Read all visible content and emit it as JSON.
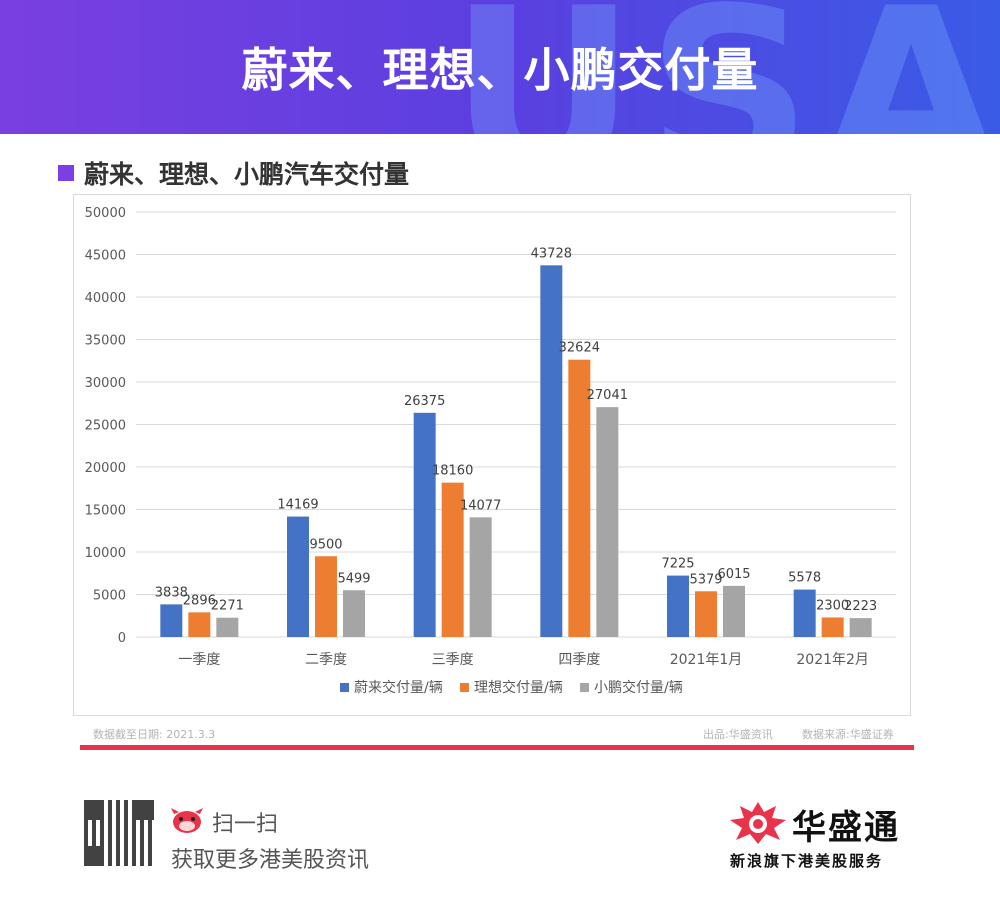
{
  "banner": {
    "title": "蔚来、理想、小鹏交付量",
    "deco_text": "USA"
  },
  "section": {
    "title": "蔚来、理想、小鹏汽车交付量"
  },
  "chart_data": {
    "type": "bar",
    "categories": [
      "一季度",
      "二季度",
      "三季度",
      "四季度",
      "2021年1月",
      "2021年2月"
    ],
    "series": [
      {
        "name": "蔚来交付量/辆",
        "color": "#4472c4",
        "values": [
          3838,
          14169,
          26375,
          43728,
          7225,
          5578
        ]
      },
      {
        "name": "理想交付量/辆",
        "color": "#ed7d31",
        "values": [
          2896,
          9500,
          18160,
          32624,
          5379,
          2300
        ]
      },
      {
        "name": "小鹏交付量/辆",
        "color": "#a5a5a5",
        "values": [
          2271,
          5499,
          14077,
          27041,
          6015,
          2223
        ]
      }
    ],
    "ylim": [
      0,
      50000
    ],
    "yticks": [
      0,
      5000,
      10000,
      15000,
      20000,
      25000,
      30000,
      35000,
      40000,
      45000,
      50000
    ],
    "grid": true,
    "legend": "bottom"
  },
  "footer": {
    "date_note": "数据截至日期:  2021.3.3",
    "producer": "出品:华盛资讯",
    "source": "数据来源:华盛证券",
    "scan": "扫一扫",
    "more": "获取更多港美股资讯",
    "logo": "华盛通",
    "logo_sub": "新浪旗下港美股服务"
  },
  "colors": {
    "accent": "#7b3fe4",
    "line": "#e8334a"
  }
}
